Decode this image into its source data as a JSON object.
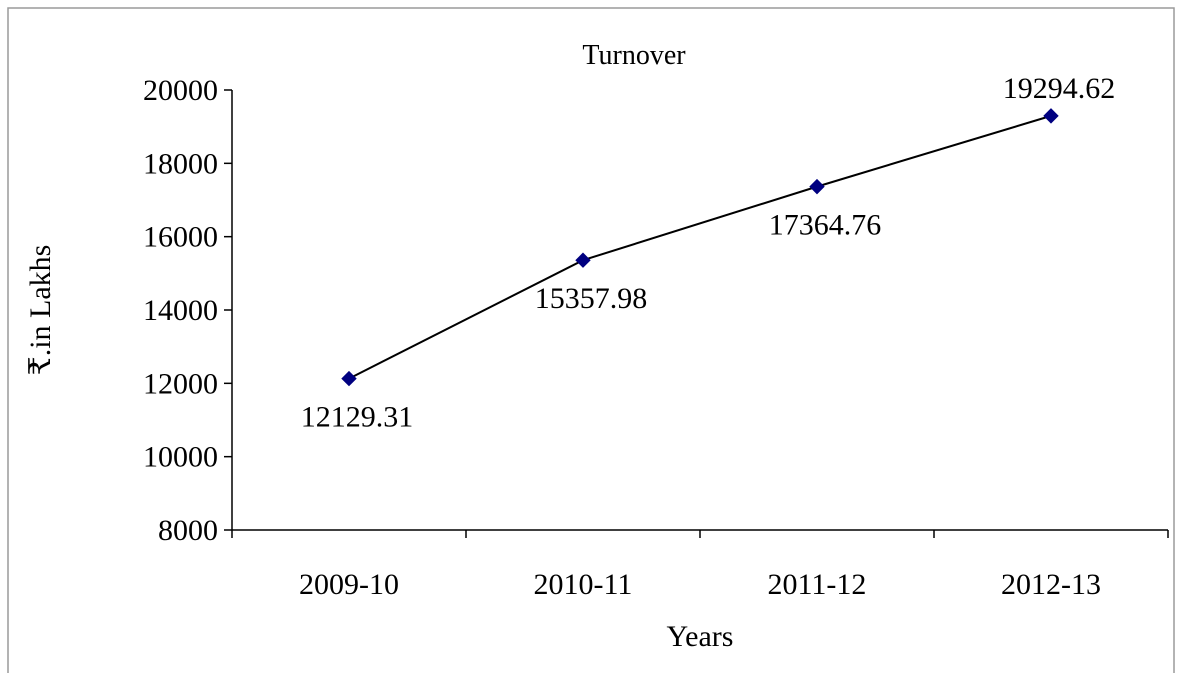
{
  "chart_data": {
    "type": "line",
    "title": "Turnover",
    "xlabel": "Years",
    "ylabel": "₹.in Lakhs",
    "categories": [
      "2009-10",
      "2010-11",
      "2011-12",
      "2012-13"
    ],
    "series": [
      {
        "values": [
          12129.31,
          15357.98,
          17364.76,
          19294.62
        ]
      }
    ],
    "data_labels": [
      "12129.31",
      "15357.98",
      "17364.76",
      "19294.62"
    ],
    "data_label_placement": [
      "below",
      "below",
      "below",
      "above"
    ],
    "ylim": [
      8000,
      20000
    ],
    "yticks": [
      8000,
      10000,
      12000,
      14000,
      16000,
      18000,
      20000
    ],
    "grid": false,
    "legend": "none",
    "colors": {
      "line": "#000000",
      "marker": "#000080",
      "axis": "#000000",
      "frame": "#9a9a9a"
    }
  }
}
